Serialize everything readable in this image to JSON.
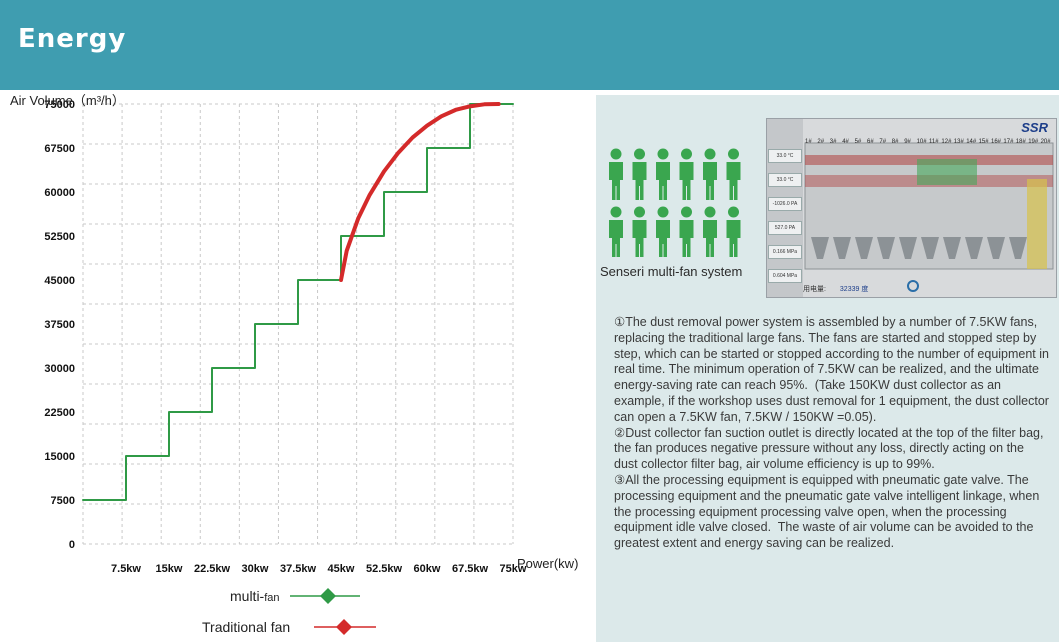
{
  "header": {
    "title": "Energy"
  },
  "chart_data": {
    "type": "line",
    "ylabel": "Air Volume（m³/h）",
    "xlabel": "Power(kw)",
    "categories": [
      "7.5kw",
      "15kw",
      "22.5kw",
      "30kw",
      "37.5kw",
      "45kw",
      "52.5kw",
      "60kw",
      "67.5kw",
      "75kw"
    ],
    "yticks": [
      "0",
      "7500",
      "15000",
      "22500",
      "30000",
      "37500",
      "45000",
      "52500",
      "60000",
      "67500",
      "75000"
    ],
    "ylim": [
      0,
      75000
    ],
    "xlim": [
      0,
      75
    ],
    "grid": true,
    "legend_position": "bottom",
    "series": [
      {
        "name": "multi-fan",
        "color": "#2f9a46",
        "marker": "diamond",
        "x": [
          0,
          7.5,
          7.5,
          15,
          15,
          22.5,
          22.5,
          30,
          30,
          37.5,
          37.5,
          45,
          45,
          52.5,
          52.5,
          60,
          60,
          67.5,
          67.5,
          75
        ],
        "y": [
          7500,
          7500,
          15000,
          15000,
          22500,
          22500,
          30000,
          30000,
          37500,
          37500,
          45000,
          45000,
          52500,
          52500,
          60000,
          60000,
          67500,
          67500,
          75000,
          75000
        ]
      },
      {
        "name": "Traditional fan",
        "color": "#d42a2a",
        "marker": "diamond",
        "x": [
          45,
          46,
          48,
          50,
          52.5,
          55,
          57.5,
          60,
          62.5,
          65,
          67.5,
          70,
          72.5
        ],
        "y": [
          45000,
          50000,
          55500,
          59500,
          63500,
          66700,
          69300,
          71300,
          72900,
          74000,
          74600,
          74950,
          75000
        ]
      }
    ]
  },
  "legend": {
    "items": [
      {
        "label_main": "multi-",
        "label_small": "fan",
        "color": "#2f9a46"
      },
      {
        "label_main": "Traditional fan",
        "label_small": "",
        "color": "#d42a2a"
      }
    ]
  },
  "right": {
    "caption": "Senseri multi-fan system",
    "screen": {
      "logo": "SSR",
      "fan_labels": [
        "1#",
        "2#",
        "3#",
        "4#",
        "5#",
        "6#",
        "7#",
        "8#",
        "9#",
        "10#",
        "11#",
        "12#",
        "13#",
        "14#",
        "15#",
        "16#",
        "17#",
        "18#",
        "19#",
        "20#"
      ],
      "side_values": [
        "33.0 °C",
        "33.0 °C",
        "-1026.0 PA",
        "527.0 PA",
        "0.166 MPa",
        "0.604 MPa"
      ],
      "consumption_label": "用电量:",
      "consumption_value": "32339 度"
    },
    "paragraphs": [
      "①The dust removal power system is assembled by a number of 7.5KW fans, replacing the traditional large fans. The fans are started and stopped step by step, which can be started or stopped according to the number of equipment in real time. The minimum operation of 7.5KW can be realized, and the ultimate energy-saving rate can reach 95%.  (Take 150KW dust collector as an example, if the workshop uses dust removal for 1 equipment, the dust collector can open a 7.5KW fan, 7.5KW / 150KW =0.05).",
      "②Dust collector fan suction outlet is directly located at the top of the filter bag, the fan produces negative pressure without any loss, directly acting on the dust collector filter bag, air volume efficiency is up to 99%.",
      "③All the processing equipment is equipped with pneumatic gate valve. The processing equipment and the pneumatic gate valve intelligent linkage, when the processing equipment processing valve open, when the processing equipment idle valve closed.  The waste of air volume can be avoided to the greatest extent and energy saving can be realized."
    ]
  }
}
